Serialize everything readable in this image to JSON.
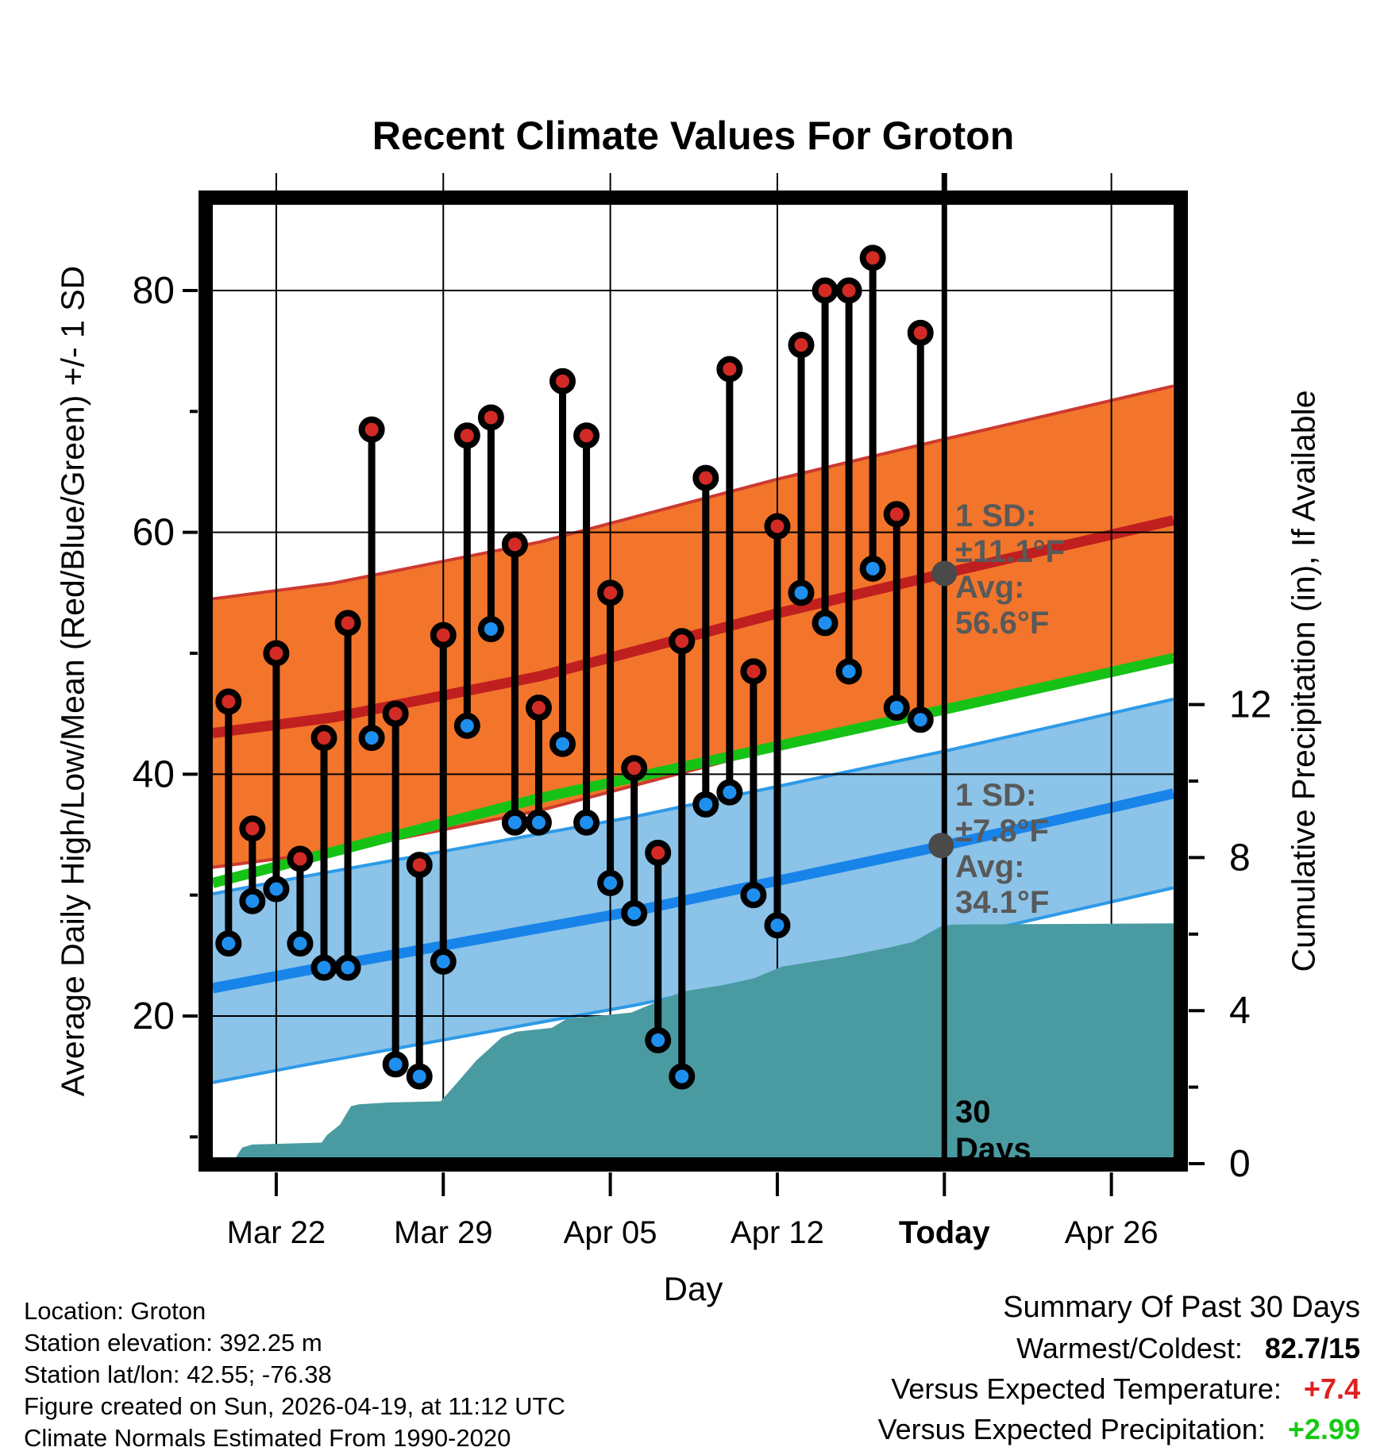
{
  "title": "Recent Climate Values For Groton",
  "axes": {
    "left_label": "Average Daily High/Low/Mean (Red/Blue/Green) +/- 1 SD",
    "right_label": "Cumulative Precipitation (in), If Available",
    "x_label": "Day",
    "x_ticks": [
      {
        "label": "Mar 22",
        "day": 2,
        "bold": false
      },
      {
        "label": "Mar 29",
        "day": 9,
        "bold": false
      },
      {
        "label": "Apr 05",
        "day": 16,
        "bold": false
      },
      {
        "label": "Apr 12",
        "day": 23,
        "bold": false
      },
      {
        "label": "Today",
        "day": 30,
        "bold": true
      },
      {
        "label": "Apr 26",
        "day": 37,
        "bold": false
      }
    ],
    "y_left_ticks": [
      {
        "label": "80",
        "value": 80
      },
      {
        "label": "60",
        "value": 60
      },
      {
        "label": "40",
        "value": 40
      },
      {
        "label": "20",
        "value": 20
      }
    ],
    "y_left_minor": [
      70,
      50,
      30,
      10
    ],
    "y_right_ticks": [
      {
        "label": "12",
        "value": 12
      },
      {
        "label": "8",
        "value": 8
      },
      {
        "label": "4",
        "value": 4
      },
      {
        "label": "0",
        "value": 0
      }
    ],
    "y_right_minor": [
      10,
      6,
      2
    ]
  },
  "chart_data": {
    "type": "combo-climate",
    "temp_axis_range": [
      9,
      87
    ],
    "precip_axis_range": [
      0,
      25
    ],
    "days": [
      "Mar 20",
      "Mar 21",
      "Mar 22",
      "Mar 23",
      "Mar 24",
      "Mar 25",
      "Mar 26",
      "Mar 27",
      "Mar 28",
      "Mar 29",
      "Mar 30",
      "Mar 31",
      "Apr 01",
      "Apr 02",
      "Apr 03",
      "Apr 04",
      "Apr 05",
      "Apr 06",
      "Apr 07",
      "Apr 08",
      "Apr 09",
      "Apr 10",
      "Apr 11",
      "Apr 12",
      "Apr 13",
      "Apr 14",
      "Apr 15",
      "Apr 16",
      "Apr 17",
      "Apr 18"
    ],
    "series": [
      {
        "name": "daily_high_f",
        "marker": "red",
        "values": [
          46,
          35.5,
          50,
          33,
          43,
          52.5,
          68.5,
          45,
          32.5,
          51.5,
          68,
          69.5,
          59,
          45.5,
          72.5,
          68,
          55,
          40.5,
          33.5,
          51,
          64.5,
          73.5,
          48.5,
          60.5,
          75.5,
          80,
          80,
          82.7,
          61.5,
          76.5
        ]
      },
      {
        "name": "daily_low_f",
        "marker": "blue",
        "values": [
          26,
          29.5,
          30.5,
          26,
          24,
          24,
          43,
          16,
          15,
          24.5,
          44,
          52,
          36,
          36,
          42.5,
          36,
          31,
          28.5,
          18,
          15,
          37.5,
          38.5,
          30,
          27.5,
          55,
          52.5,
          48.5,
          57,
          45.5,
          44.5
        ]
      }
    ],
    "normals": {
      "avg_high_points": [
        [
          -0.66,
          43.4
        ],
        [
          4.4,
          44.7
        ],
        [
          13.05,
          48.1
        ],
        [
          23,
          53.3
        ],
        [
          30,
          56.6
        ],
        [
          39.6,
          61.0
        ]
      ],
      "avg_low_points": [
        [
          -0.66,
          22.3
        ],
        [
          3.07,
          23.7
        ],
        [
          17.05,
          28.7
        ],
        [
          30,
          34.1
        ],
        [
          39.6,
          38.4
        ]
      ],
      "mean_points": [
        [
          -0.66,
          31.0
        ],
        [
          13,
          38.0
        ],
        [
          30,
          45.35
        ],
        [
          39.6,
          49.6
        ]
      ],
      "sd_high": 11.1,
      "sd_low": 7.8,
      "avg_high_today": 56.6,
      "avg_low_today": 34.1
    },
    "cumulative_precip_in": [
      [
        -0.66,
        0.07
      ],
      [
        0.24,
        0.1
      ],
      [
        0.57,
        0.42
      ],
      [
        1.0,
        0.5
      ],
      [
        3.9,
        0.55
      ],
      [
        4.13,
        0.75
      ],
      [
        4.67,
        1.02
      ],
      [
        5.13,
        1.5
      ],
      [
        5.46,
        1.55
      ],
      [
        6.73,
        1.6
      ],
      [
        8.89,
        1.63
      ],
      [
        9.56,
        2.1
      ],
      [
        10.39,
        2.7
      ],
      [
        11.45,
        3.3
      ],
      [
        12.05,
        3.45
      ],
      [
        13.55,
        3.55
      ],
      [
        14.21,
        3.8
      ],
      [
        15.78,
        3.88
      ],
      [
        16.88,
        3.95
      ],
      [
        18.04,
        4.25
      ],
      [
        19.04,
        4.5
      ],
      [
        21.04,
        4.7
      ],
      [
        22.04,
        4.85
      ],
      [
        23.2,
        5.15
      ],
      [
        23.7,
        5.2
      ],
      [
        25.7,
        5.4
      ],
      [
        27.7,
        5.65
      ],
      [
        28.7,
        5.8
      ],
      [
        29.42,
        6.05
      ],
      [
        29.85,
        6.2
      ],
      [
        30.35,
        6.25
      ],
      [
        39.6,
        6.28
      ]
    ],
    "today_day_index": 30
  },
  "annotations": {
    "high_block": {
      "lines": [
        "1 SD:",
        "±11.1°F",
        "Avg:",
        "56.6°F"
      ]
    },
    "low_block": {
      "lines": [
        "1 SD:",
        "±7.8°F",
        "Avg:",
        "34.1°F"
      ]
    },
    "window_label": {
      "lines": [
        "30",
        "Days"
      ]
    }
  },
  "footer_left": {
    "lines": [
      "Location: Groton",
      "Station elevation: 392.25 m",
      "Station lat/lon: 42.55; -76.38",
      "Figure created on Sun, 2026-04-19, at 11:12 UTC",
      "Climate Normals Estimated From 1990-2020"
    ]
  },
  "summary": {
    "title": "Summary Of Past 30 Days",
    "rows": [
      {
        "label": "Warmest/Coldest:",
        "value": "82.7/15",
        "value_color": "#000000"
      },
      {
        "label": "Versus Expected Temperature:",
        "value": "+7.4",
        "value_color": "#e01f1f"
      },
      {
        "label": "Versus Expected Precipitation:",
        "value": "+2.99",
        "value_color": "#17c917"
      }
    ]
  },
  "colors": {
    "band_high_fill": "#f2752b",
    "band_high_edge": "#cc3a30",
    "avg_high_line": "#c01f1f",
    "mean_line": "#17c217",
    "band_low_fill": "#8cc3e8",
    "band_low_edge": "#2e9ae8",
    "avg_low_line": "#1884ea",
    "precip_fill": "#4a9ba1",
    "red_dot": "#d22b25",
    "blue_dot": "#1f8fef",
    "gray_dot": "#4a4a4a",
    "stem": "#000000",
    "grid": "#000000",
    "frame": "#000000"
  }
}
